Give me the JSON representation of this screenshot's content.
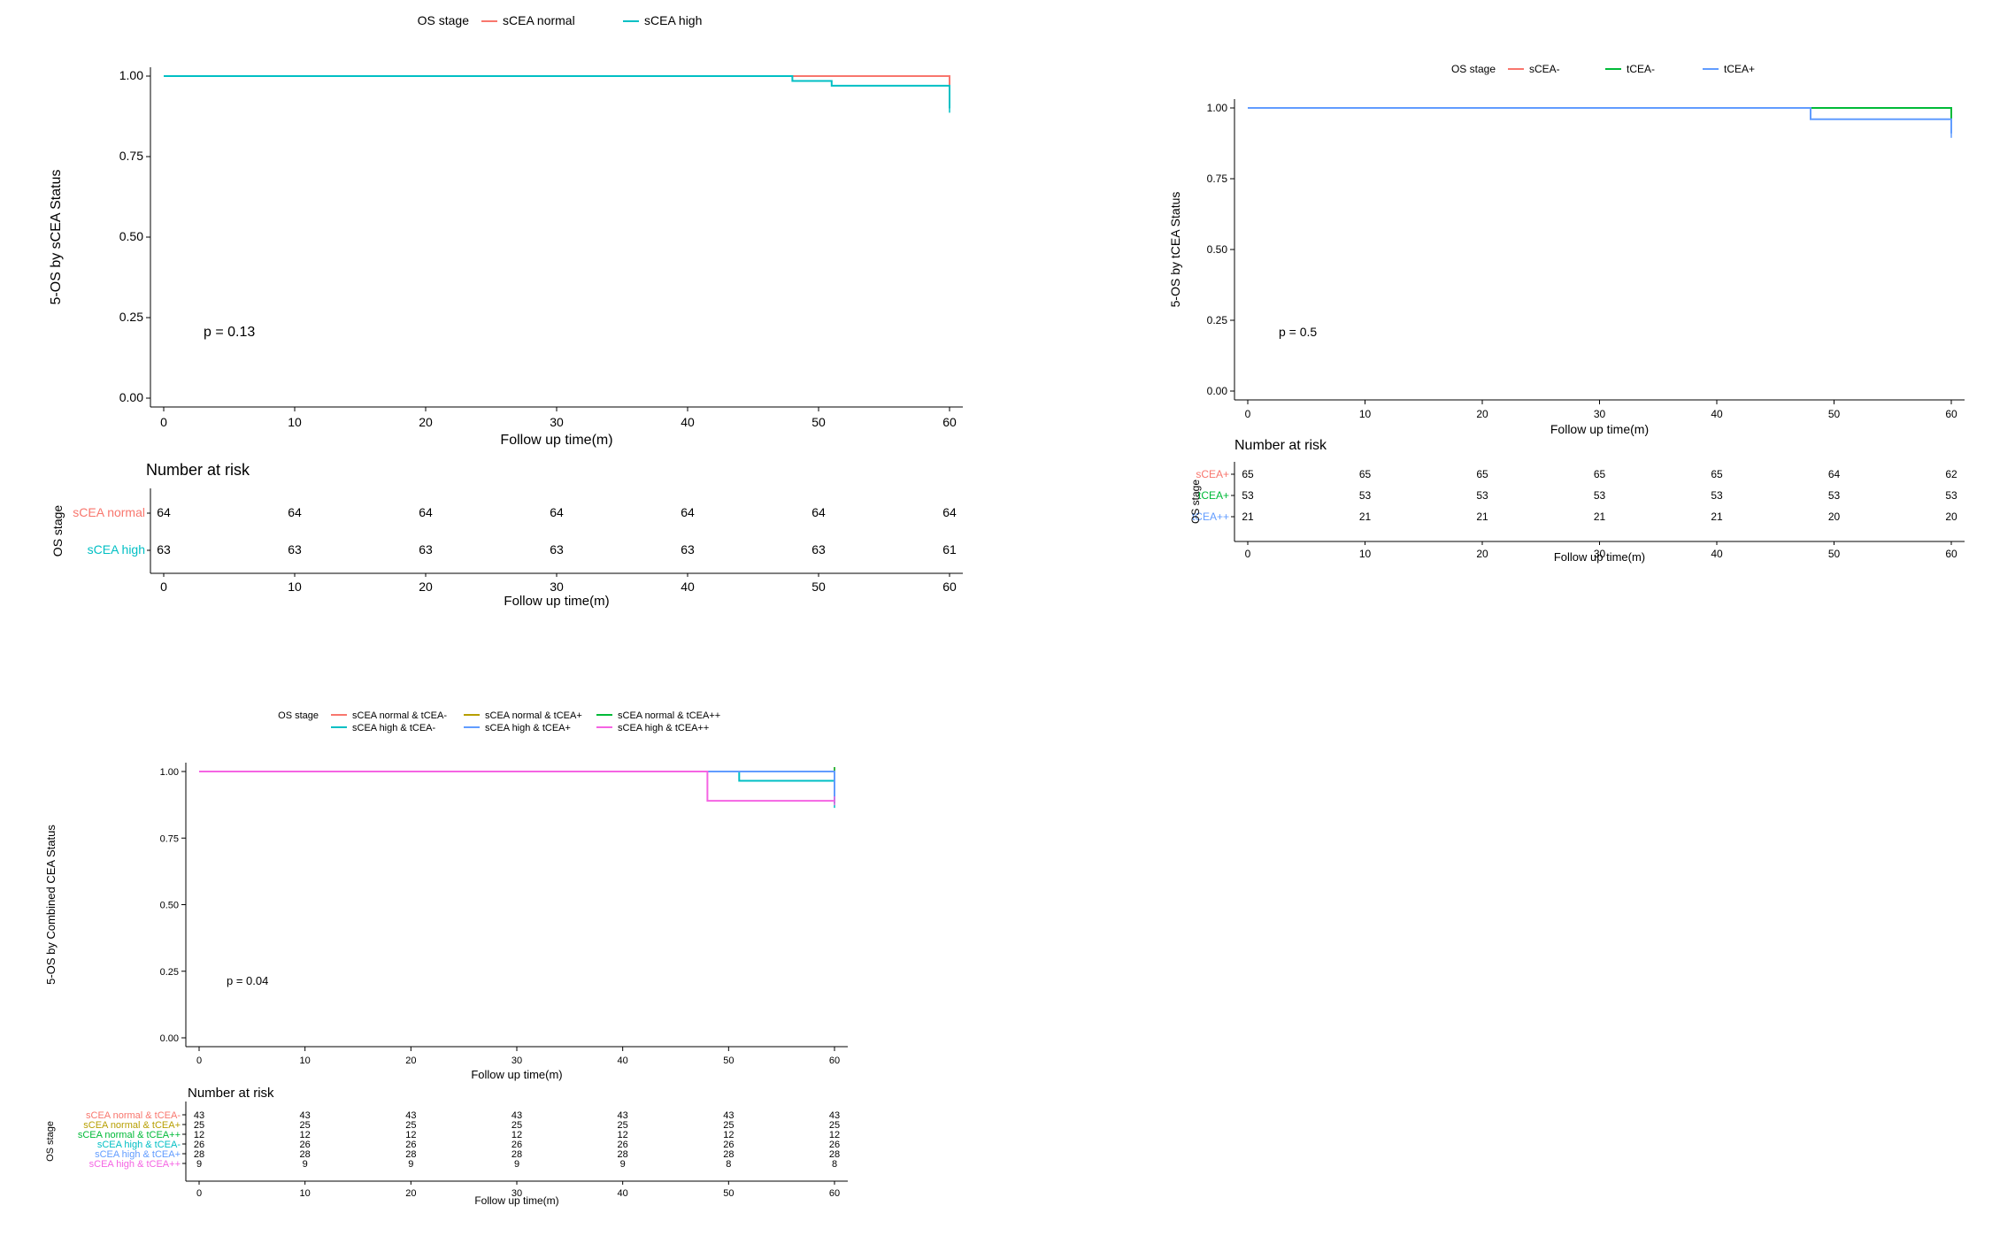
{
  "panels": {
    "a": {
      "legend": {
        "title": "OS stage",
        "items": [
          "sCEA normal",
          "sCEA high"
        ]
      },
      "ylabel": "5-OS by sCEA Status",
      "xlabel": "Follow up time(m)",
      "pvalue": "p = 0.13",
      "risk": {
        "title": "Number at risk",
        "strata_title": "OS stage",
        "rows": [
          "sCEA normal",
          "sCEA high"
        ],
        "xlabel": "Follow up time(m)"
      }
    },
    "b": {
      "legend": {
        "title": "OS stage",
        "items": [
          "sCEA-",
          "tCEA-",
          "tCEA+"
        ]
      },
      "ylabel": "5-OS by tCEA Status",
      "xlabel": "Follow up time(m)",
      "pvalue": "p = 0.5",
      "risk": {
        "title": "Number at risk",
        "strata_title": "OS stage",
        "rows": [
          "sCEA+",
          "tCEA+",
          "tCEA++"
        ],
        "xlabel": "Follow up time(m)"
      }
    },
    "c": {
      "legend": {
        "title": "OS stage",
        "items": [
          "sCEA normal & tCEA-",
          "sCEA normal & tCEA+",
          "sCEA normal & tCEA++",
          "sCEA high & tCEA-",
          "sCEA high & tCEA+",
          "sCEA high & tCEA++"
        ]
      },
      "ylabel": "5-OS by Combined CEA Status",
      "xlabel": "Follow up time(m)",
      "pvalue": "p = 0.04",
      "risk": {
        "title": "Number at risk",
        "strata_title": "OS stage",
        "rows": [
          "sCEA normal & tCEA-",
          "sCEA normal & tCEA+",
          "sCEA normal & tCEA++",
          "sCEA high & tCEA-",
          "sCEA high & tCEA+",
          "sCEA high & tCEA++"
        ],
        "xlabel": "Follow up time(m)"
      }
    }
  },
  "chart_data": [
    {
      "id": "a",
      "type": "line",
      "step": true,
      "x_ticks": [
        0,
        10,
        20,
        30,
        40,
        50,
        60
      ],
      "y_ticks": [
        "0.00",
        "0.25",
        "0.50",
        "0.75",
        "1.00"
      ],
      "xlim": [
        0,
        60
      ],
      "ylim": [
        0,
        1
      ],
      "series": [
        {
          "name": "sCEA normal",
          "color": "#F8766D",
          "points": [
            [
              0,
              1
            ],
            [
              60,
              1
            ],
            [
              60,
              0.97
            ]
          ]
        },
        {
          "name": "sCEA high",
          "color": "#00BFC4",
          "points": [
            [
              0,
              1
            ],
            [
              48,
              1
            ],
            [
              48,
              0.985
            ],
            [
              51,
              0.985
            ],
            [
              51,
              0.97
            ],
            [
              60,
              0.97
            ],
            [
              60,
              0.9
            ]
          ]
        }
      ],
      "risk_table": {
        "times": [
          0,
          10,
          20,
          30,
          40,
          50,
          60
        ],
        "rows": [
          {
            "name": "sCEA normal",
            "color": "#F8766D",
            "values": [
              "64",
              "64",
              "64",
              "64",
              "64",
              "64",
              "64"
            ]
          },
          {
            "name": "sCEA high",
            "color": "#00BFC4",
            "values": [
              "63",
              "63",
              "63",
              "63",
              "63",
              "63",
              "61"
            ]
          }
        ]
      }
    },
    {
      "id": "b",
      "type": "line",
      "step": true,
      "x_ticks": [
        0,
        10,
        20,
        30,
        40,
        50,
        60
      ],
      "y_ticks": [
        "0.00",
        "0.25",
        "0.50",
        "0.75",
        "1.00"
      ],
      "xlim": [
        0,
        60
      ],
      "ylim": [
        0,
        1
      ],
      "series": [
        {
          "name": "sCEA-",
          "color": "#F8766D",
          "points": [
            [
              0,
              1
            ],
            [
              60,
              1
            ],
            [
              60,
              0.97
            ]
          ]
        },
        {
          "name": "tCEA-",
          "color": "#00BA38",
          "points": [
            [
              0,
              1
            ],
            [
              60,
              1
            ],
            [
              60,
              0.96
            ]
          ]
        },
        {
          "name": "tCEA+",
          "color": "#619CFF",
          "points": [
            [
              0,
              1
            ],
            [
              48,
              1
            ],
            [
              48,
              0.96
            ],
            [
              60,
              0.96
            ],
            [
              60,
              0.91
            ]
          ]
        }
      ],
      "risk_table": {
        "times": [
          0,
          10,
          20,
          30,
          40,
          50,
          60
        ],
        "rows": [
          {
            "name": "sCEA+",
            "color": "#F8766D",
            "values": [
              "65",
              "65",
              "65",
              "65",
              "65",
              "64",
              "62"
            ]
          },
          {
            "name": "tCEA+",
            "color": "#00BA38",
            "values": [
              "53",
              "53",
              "53",
              "53",
              "53",
              "53",
              "53"
            ]
          },
          {
            "name": "tCEA++",
            "color": "#619CFF",
            "values": [
              "21",
              "21",
              "21",
              "21",
              "21",
              "20",
              "20"
            ]
          }
        ]
      }
    },
    {
      "id": "c",
      "type": "line",
      "step": true,
      "x_ticks": [
        0,
        10,
        20,
        30,
        40,
        50,
        60
      ],
      "y_ticks": [
        "0.00",
        "0.25",
        "0.50",
        "0.75",
        "1.00"
      ],
      "xlim": [
        0,
        60
      ],
      "ylim": [
        0,
        1
      ],
      "series": [
        {
          "name": "sCEA normal & tCEA-",
          "color": "#F8766D",
          "points": [
            [
              0,
              1
            ],
            [
              60,
              1
            ]
          ]
        },
        {
          "name": "sCEA normal & tCEA+",
          "color": "#B79F00",
          "points": [
            [
              0,
              1
            ],
            [
              60,
              1
            ]
          ]
        },
        {
          "name": "sCEA normal & tCEA++",
          "color": "#00BA38",
          "points": [
            [
              0,
              1
            ],
            [
              60,
              1
            ]
          ]
        },
        {
          "name": "sCEA high & tCEA-",
          "color": "#00BFC4",
          "points": [
            [
              0,
              1
            ],
            [
              51,
              1
            ],
            [
              51,
              0.965
            ],
            [
              60,
              0.965
            ],
            [
              60,
              0.88
            ]
          ]
        },
        {
          "name": "sCEA high & tCEA+",
          "color": "#619CFF",
          "points": [
            [
              0,
              1
            ],
            [
              60,
              1
            ],
            [
              60,
              0.9
            ]
          ]
        },
        {
          "name": "sCEA high & tCEA++",
          "color": "#F564E3",
          "points": [
            [
              0,
              1
            ],
            [
              48,
              1
            ],
            [
              48,
              0.89
            ],
            [
              60,
              0.89
            ]
          ]
        }
      ],
      "risk_table": {
        "times": [
          0,
          10,
          20,
          30,
          40,
          50,
          60
        ],
        "rows": [
          {
            "name": "sCEA normal & tCEA-",
            "color": "#F8766D",
            "values": [
              "43",
              "43",
              "43",
              "43",
              "43",
              "43",
              "43"
            ]
          },
          {
            "name": "sCEA normal & tCEA+",
            "color": "#B79F00",
            "values": [
              "25",
              "25",
              "25",
              "25",
              "25",
              "25",
              "25"
            ]
          },
          {
            "name": "sCEA normal & tCEA++",
            "color": "#00BA38",
            "values": [
              "12",
              "12",
              "12",
              "12",
              "12",
              "12",
              "12"
            ]
          },
          {
            "name": "sCEA high & tCEA-",
            "color": "#00BFC4",
            "values": [
              "26",
              "26",
              "26",
              "26",
              "26",
              "26",
              "26"
            ]
          },
          {
            "name": "sCEA high & tCEA+",
            "color": "#619CFF",
            "values": [
              "28",
              "28",
              "28",
              "28",
              "28",
              "28",
              "28"
            ]
          },
          {
            "name": "sCEA high & tCEA++",
            "color": "#F564E3",
            "values": [
              "9",
              "9",
              "9",
              "9",
              "9",
              "8",
              "8"
            ]
          }
        ]
      }
    }
  ]
}
